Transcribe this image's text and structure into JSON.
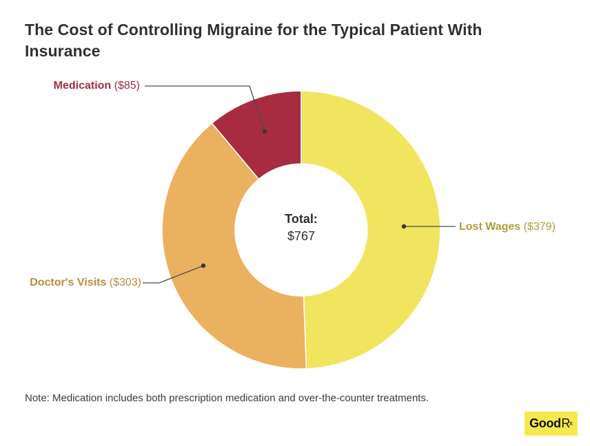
{
  "header": {
    "title": "The Cost of Controlling Migraine for the Typical Patient With Insurance"
  },
  "chart_data": {
    "type": "pie",
    "variant": "donut",
    "title": "The Cost of Controlling Migraine for the Typical Patient With Insurance",
    "direction": "clockwise",
    "start_angle_deg": 0,
    "total": 767,
    "center_label": {
      "title": "Total:",
      "value": "$767"
    },
    "legend_position": "callout-labels",
    "slices": [
      {
        "label": "Lost Wages",
        "value": 379,
        "amount_text": "($379)",
        "color": "#f1e45f",
        "label_color": "#ad9c3a"
      },
      {
        "label": "Doctor's Visits",
        "value": 303,
        "amount_text": "($303)",
        "color": "#e9b160",
        "label_color": "#bb8b3e"
      },
      {
        "label": "Medication",
        "value": 85,
        "amount_text": "($85)",
        "color": "#a72c40",
        "label_color": "#a72c40"
      }
    ]
  },
  "footer": {
    "note": "Note: Medication includes both prescription medication and over-the-counter treatments.",
    "logo": {
      "name": "GoodRx",
      "part_good": "Good",
      "part_r": "R",
      "part_x": "x",
      "background": "#f6e94e"
    }
  },
  "colors": {
    "background": "#ffffff",
    "title_text": "#303030",
    "note_text": "#3c3c3c",
    "leader_line": "#4a4a4a",
    "leader_dot": "#383838"
  }
}
